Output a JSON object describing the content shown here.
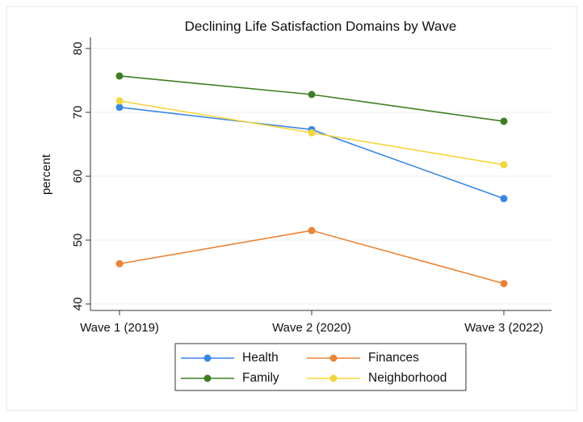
{
  "chart_data": {
    "type": "line",
    "title": "Declining Life Satisfaction Domains by Wave",
    "xlabel": "",
    "ylabel": "percent",
    "categories": [
      "Wave 1 (2019)",
      "Wave 2 (2020)",
      "Wave 3 (2022)"
    ],
    "ylim": [
      40,
      80
    ],
    "yticks": [
      40,
      50,
      60,
      70,
      80
    ],
    "grid": true,
    "legend_position": "bottom",
    "series": [
      {
        "name": "Health",
        "color": "#3a86e8",
        "values": [
          70.8,
          67.3,
          56.5
        ]
      },
      {
        "name": "Finances",
        "color": "#ed8333",
        "values": [
          46.3,
          51.5,
          43.2
        ]
      },
      {
        "name": "Family",
        "color": "#3f7f23",
        "values": [
          75.7,
          72.8,
          68.6
        ]
      },
      {
        "name": "Neighborhood",
        "color": "#f5d63c",
        "values": [
          71.8,
          66.8,
          61.8
        ]
      }
    ]
  }
}
